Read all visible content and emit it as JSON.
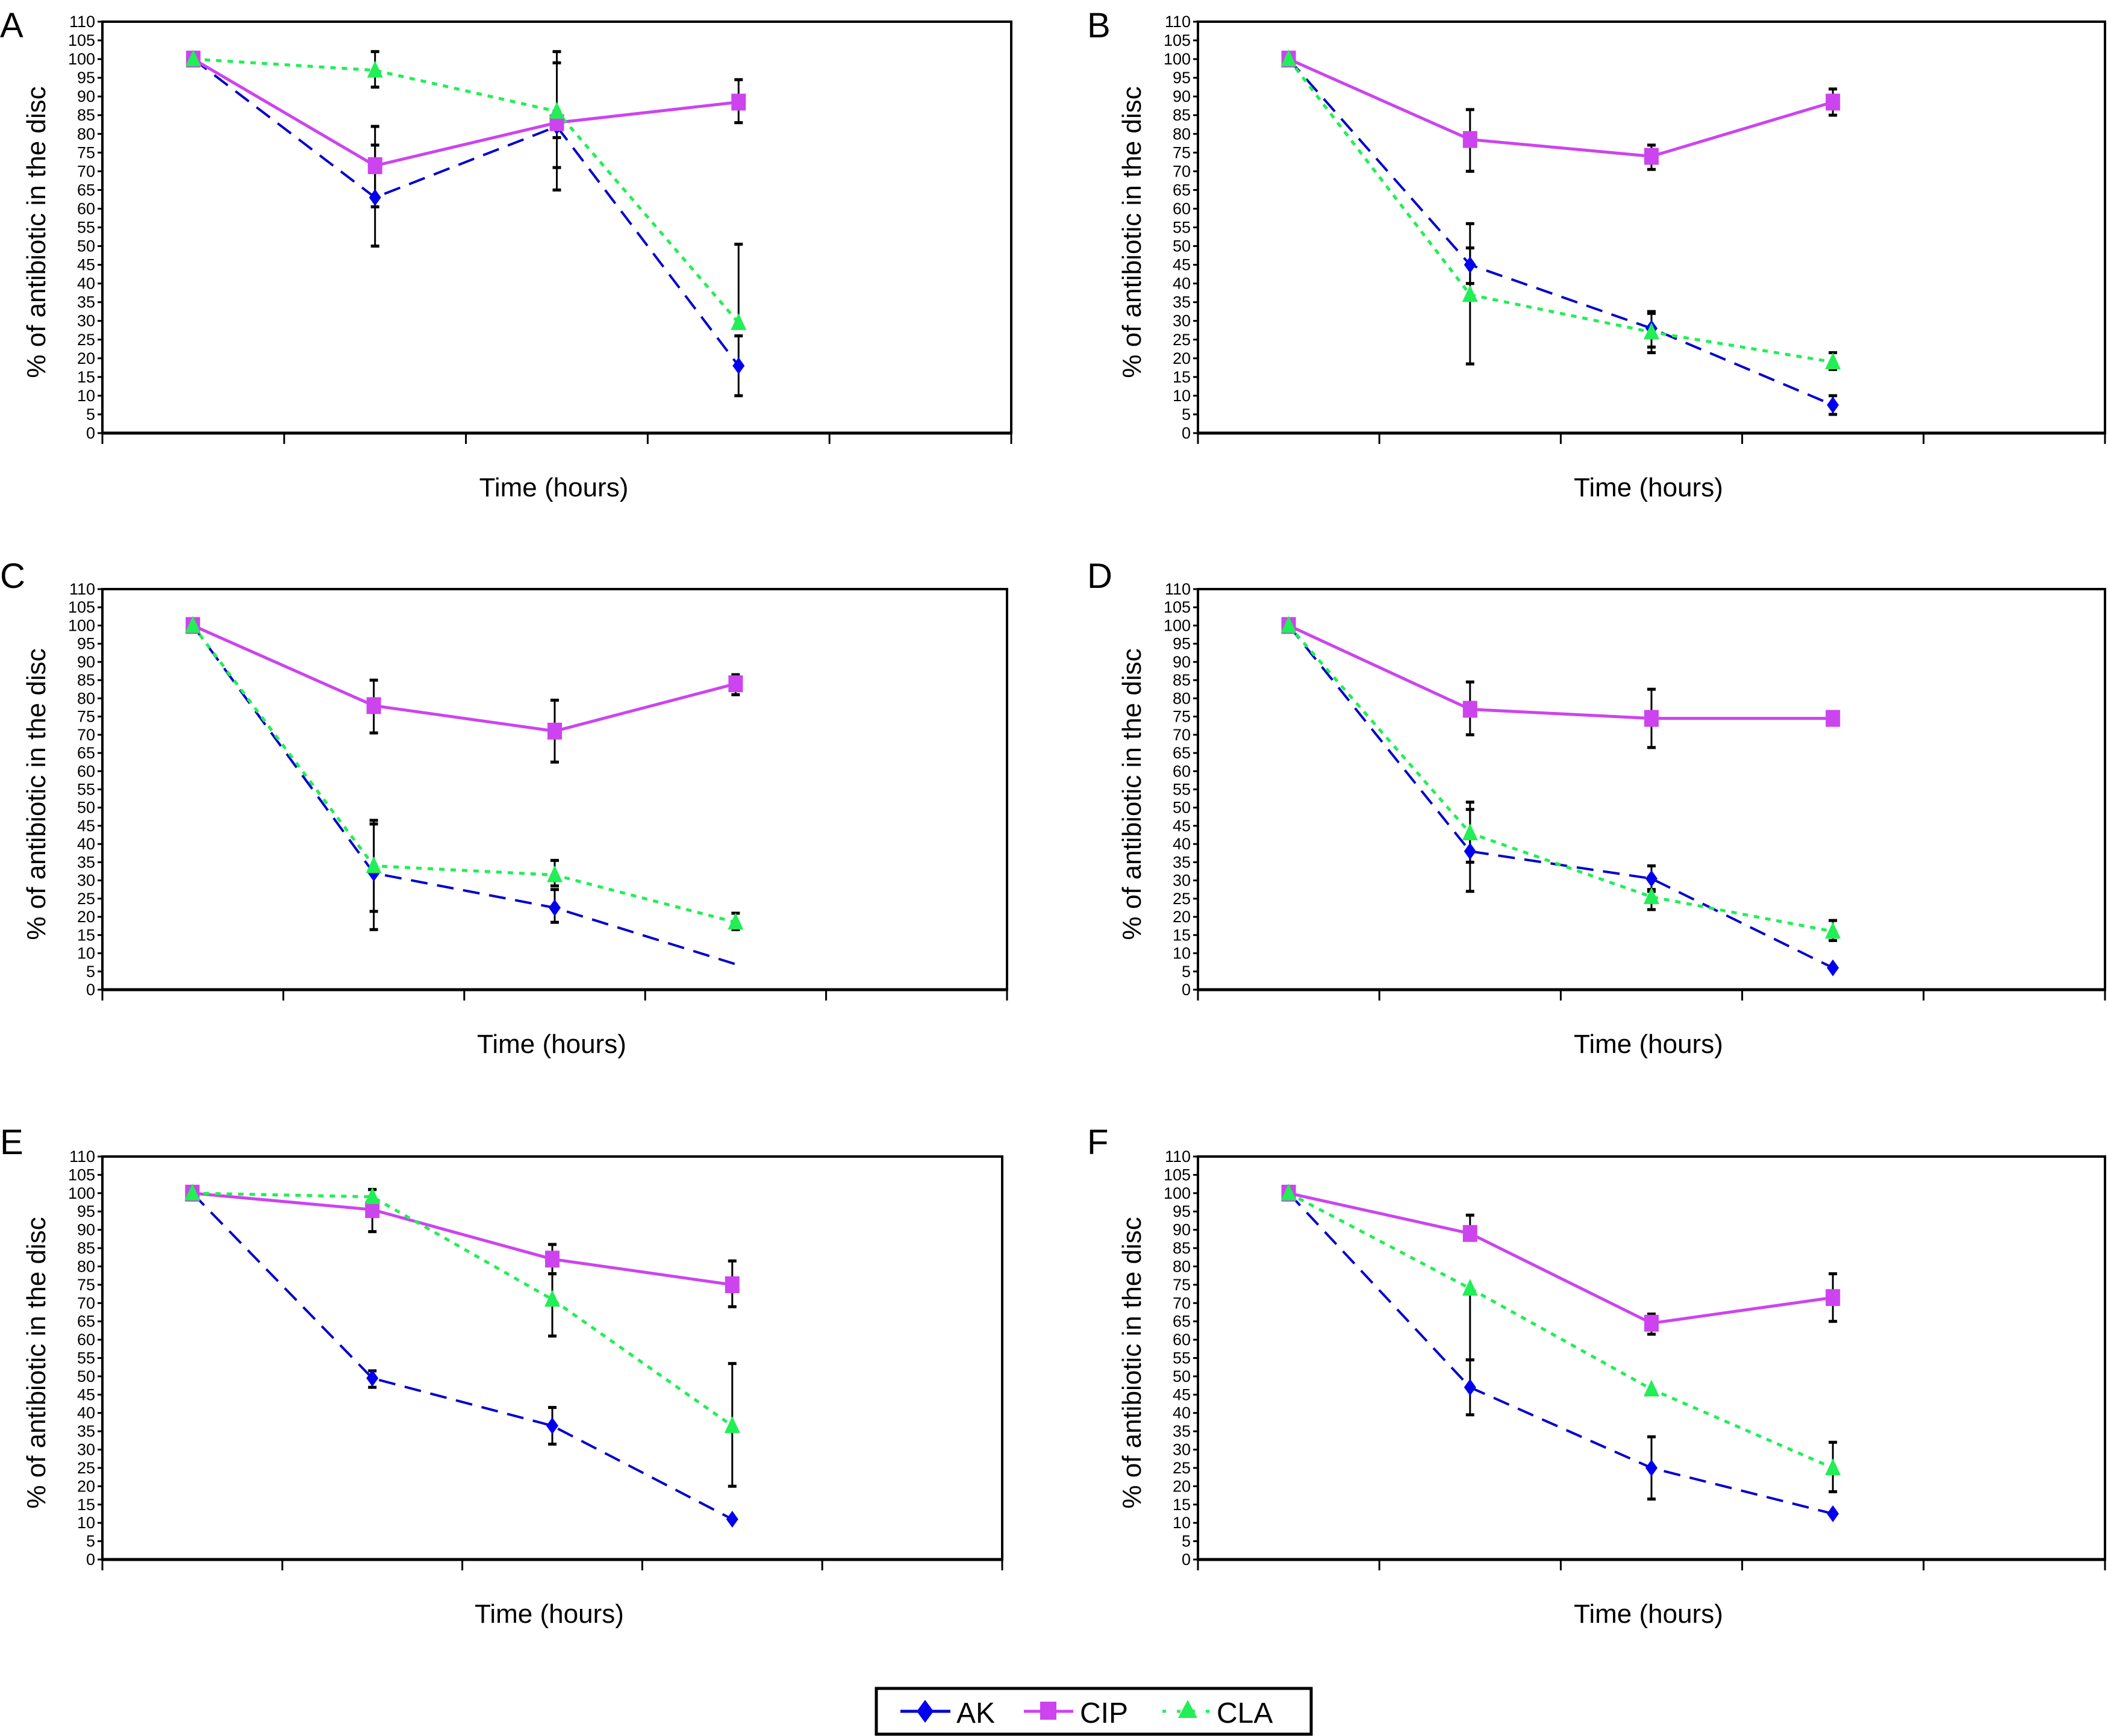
{
  "figure": {
    "legend": {
      "items": [
        {
          "label": "AK",
          "color": "#0000CC",
          "marker": "diamond",
          "line": "dashed"
        },
        {
          "label": "CIP",
          "color": "#CC44EE",
          "marker": "square",
          "line": "solid"
        },
        {
          "label": "CLA",
          "color": "#22EE55",
          "marker": "triangle",
          "line": "dotted"
        }
      ],
      "placement": "bottom-center"
    }
  },
  "chart_data": [
    {
      "panel": "A",
      "type": "line",
      "title": "",
      "xlabel": "Time (hours)",
      "ylabel": "% of antibiotic in the disc",
      "ylim": [
        0,
        110
      ],
      "yticks": [
        0,
        5,
        10,
        15,
        20,
        25,
        30,
        35,
        40,
        45,
        50,
        55,
        60,
        65,
        70,
        75,
        80,
        85,
        90,
        95,
        100,
        105,
        110
      ],
      "categories": [
        "",
        "",
        "",
        ""
      ],
      "grid": false,
      "series": [
        {
          "name": "AK",
          "values": [
            100,
            63,
            82,
            18
          ],
          "error": [
            [
              null,
              null
            ],
            [
              50,
              77
            ],
            [
              71,
              99
            ],
            [
              10,
              26
            ]
          ]
        },
        {
          "name": "CIP",
          "values": [
            100,
            71.5,
            83,
            88.5
          ],
          "error": [
            [
              null,
              null
            ],
            [
              60.5,
              82
            ],
            [
              79,
              86
            ],
            [
              83,
              94.5
            ]
          ]
        },
        {
          "name": "CLA",
          "values": [
            100,
            97,
            86,
            29.5
          ],
          "error": [
            [
              null,
              null
            ],
            [
              92.5,
              102
            ],
            [
              65,
              102
            ],
            [
              null,
              50.5
            ]
          ]
        }
      ]
    },
    {
      "panel": "B",
      "type": "line",
      "title": "",
      "xlabel": "Time (hours)",
      "ylabel": "% of antibiotic in the disc",
      "ylim": [
        0,
        110
      ],
      "yticks": [
        0,
        5,
        10,
        15,
        20,
        25,
        30,
        35,
        40,
        45,
        50,
        55,
        60,
        65,
        70,
        75,
        80,
        85,
        90,
        95,
        100,
        105,
        110
      ],
      "categories": [
        "",
        "",
        "",
        ""
      ],
      "grid": false,
      "series": [
        {
          "name": "AK",
          "values": [
            100,
            45,
            28,
            7.5
          ],
          "error": [
            [
              null,
              null
            ],
            [
              40,
              56
            ],
            [
              23,
              32
            ],
            [
              5,
              10
            ]
          ]
        },
        {
          "name": "CIP",
          "values": [
            100,
            78.5,
            74,
            88.5
          ],
          "error": [
            [
              null,
              null
            ],
            [
              70,
              86.5
            ],
            [
              70.5,
              77
            ],
            [
              85,
              92
            ]
          ]
        },
        {
          "name": "CLA",
          "values": [
            100,
            37,
            27,
            19
          ],
          "error": [
            [
              null,
              null
            ],
            [
              18.5,
              49.5
            ],
            [
              21.5,
              32.5
            ],
            [
              17,
              21.5
            ]
          ]
        }
      ]
    },
    {
      "panel": "C",
      "type": "line",
      "title": "",
      "xlabel": "Time (hours)",
      "ylabel": "% of antibiotic in the disc",
      "ylim": [
        0,
        110
      ],
      "yticks": [
        0,
        5,
        10,
        15,
        20,
        25,
        30,
        35,
        40,
        45,
        50,
        55,
        60,
        65,
        70,
        75,
        80,
        85,
        90,
        95,
        100,
        105,
        110
      ],
      "categories": [
        "",
        "",
        "",
        ""
      ],
      "grid": false,
      "series": [
        {
          "name": "AK",
          "values": [
            100,
            32,
            22.5,
            7
          ],
          "markers": [
            true,
            true,
            true,
            false
          ],
          "error": [
            [
              null,
              null
            ],
            [
              16.5,
              46.5
            ],
            [
              18.5,
              27.5
            ],
            [
              null,
              null
            ]
          ]
        },
        {
          "name": "CIP",
          "values": [
            100,
            78,
            71,
            84
          ],
          "error": [
            [
              null,
              null
            ],
            [
              70.5,
              85
            ],
            [
              62.5,
              79.5
            ],
            [
              81,
              86.5
            ]
          ]
        },
        {
          "name": "CLA",
          "values": [
            100,
            34,
            31.5,
            18.5
          ],
          "error": [
            [
              null,
              null
            ],
            [
              21.5,
              45.5
            ],
            [
              28.5,
              35.5
            ],
            [
              16.5,
              21
            ]
          ]
        }
      ]
    },
    {
      "panel": "D",
      "type": "line",
      "title": "",
      "xlabel": "Time (hours)",
      "ylabel": "% of antibiotic in the disc",
      "ylim": [
        0,
        110
      ],
      "yticks": [
        0,
        5,
        10,
        15,
        20,
        25,
        30,
        35,
        40,
        45,
        50,
        55,
        60,
        65,
        70,
        75,
        80,
        85,
        90,
        95,
        100,
        105,
        110
      ],
      "categories": [
        "",
        "",
        "",
        ""
      ],
      "grid": false,
      "series": [
        {
          "name": "AK",
          "values": [
            100,
            38,
            30.5,
            6
          ],
          "error": [
            [
              null,
              null
            ],
            [
              27,
              49.5
            ],
            [
              27,
              34
            ],
            [
              null,
              null
            ]
          ]
        },
        {
          "name": "CIP",
          "values": [
            100,
            77,
            74.5,
            74.5
          ],
          "error": [
            [
              null,
              null
            ],
            [
              70,
              84.5
            ],
            [
              66.5,
              82.5
            ],
            [
              null,
              null
            ]
          ]
        },
        {
          "name": "CLA",
          "values": [
            100,
            43,
            25.5,
            16
          ],
          "error": [
            [
              null,
              null
            ],
            [
              35,
              51.5
            ],
            [
              22,
              27.5
            ],
            [
              13.5,
              19
            ]
          ]
        }
      ]
    },
    {
      "panel": "E",
      "type": "line",
      "title": "",
      "xlabel": "Time (hours)",
      "ylabel": "% of antibiotic in the disc",
      "ylim": [
        0,
        110
      ],
      "yticks": [
        0,
        5,
        10,
        15,
        20,
        25,
        30,
        35,
        40,
        45,
        50,
        55,
        60,
        65,
        70,
        75,
        80,
        85,
        90,
        95,
        100,
        105,
        110
      ],
      "categories": [
        "",
        "",
        "",
        ""
      ],
      "grid": false,
      "series": [
        {
          "name": "AK",
          "values": [
            100,
            49.5,
            36.5,
            11
          ],
          "error": [
            [
              null,
              null
            ],
            [
              47,
              51.5
            ],
            [
              31.5,
              41.5
            ],
            [
              null,
              null
            ]
          ]
        },
        {
          "name": "CIP",
          "values": [
            100,
            95.5,
            82,
            75
          ],
          "error": [
            [
              null,
              null
            ],
            [
              89.5,
              101
            ],
            [
              78,
              86
            ],
            [
              69,
              81.5
            ]
          ]
        },
        {
          "name": "CLA",
          "values": [
            100,
            99,
            71,
            36.5
          ],
          "error": [
            [
              null,
              null
            ],
            [
              null,
              101
            ],
            [
              61,
              78
            ],
            [
              20,
              53.5
            ]
          ]
        }
      ]
    },
    {
      "panel": "F",
      "type": "line",
      "title": "",
      "xlabel": "Time (hours)",
      "ylabel": "% of antibiotic in the disc",
      "ylim": [
        0,
        110
      ],
      "yticks": [
        0,
        5,
        10,
        15,
        20,
        25,
        30,
        35,
        40,
        45,
        50,
        55,
        60,
        65,
        70,
        75,
        80,
        85,
        90,
        95,
        100,
        105,
        110
      ],
      "categories": [
        "",
        "",
        "",
        ""
      ],
      "grid": false,
      "series": [
        {
          "name": "AK",
          "values": [
            100,
            47,
            25,
            12.5
          ],
          "error": [
            [
              null,
              null
            ],
            [
              39.5,
              54.5
            ],
            [
              16.5,
              33.5
            ],
            [
              null,
              null
            ]
          ]
        },
        {
          "name": "CIP",
          "values": [
            100,
            89,
            64.5,
            71.5
          ],
          "error": [
            [
              null,
              null
            ],
            [
              null,
              94
            ],
            [
              61.5,
              67
            ],
            [
              65,
              78
            ]
          ]
        },
        {
          "name": "CLA",
          "values": [
            100,
            74,
            46.5,
            25
          ],
          "error": [
            [
              null,
              null
            ],
            [
              54.5,
              null
            ],
            [
              null,
              null
            ],
            [
              18.5,
              32
            ]
          ]
        }
      ]
    }
  ]
}
